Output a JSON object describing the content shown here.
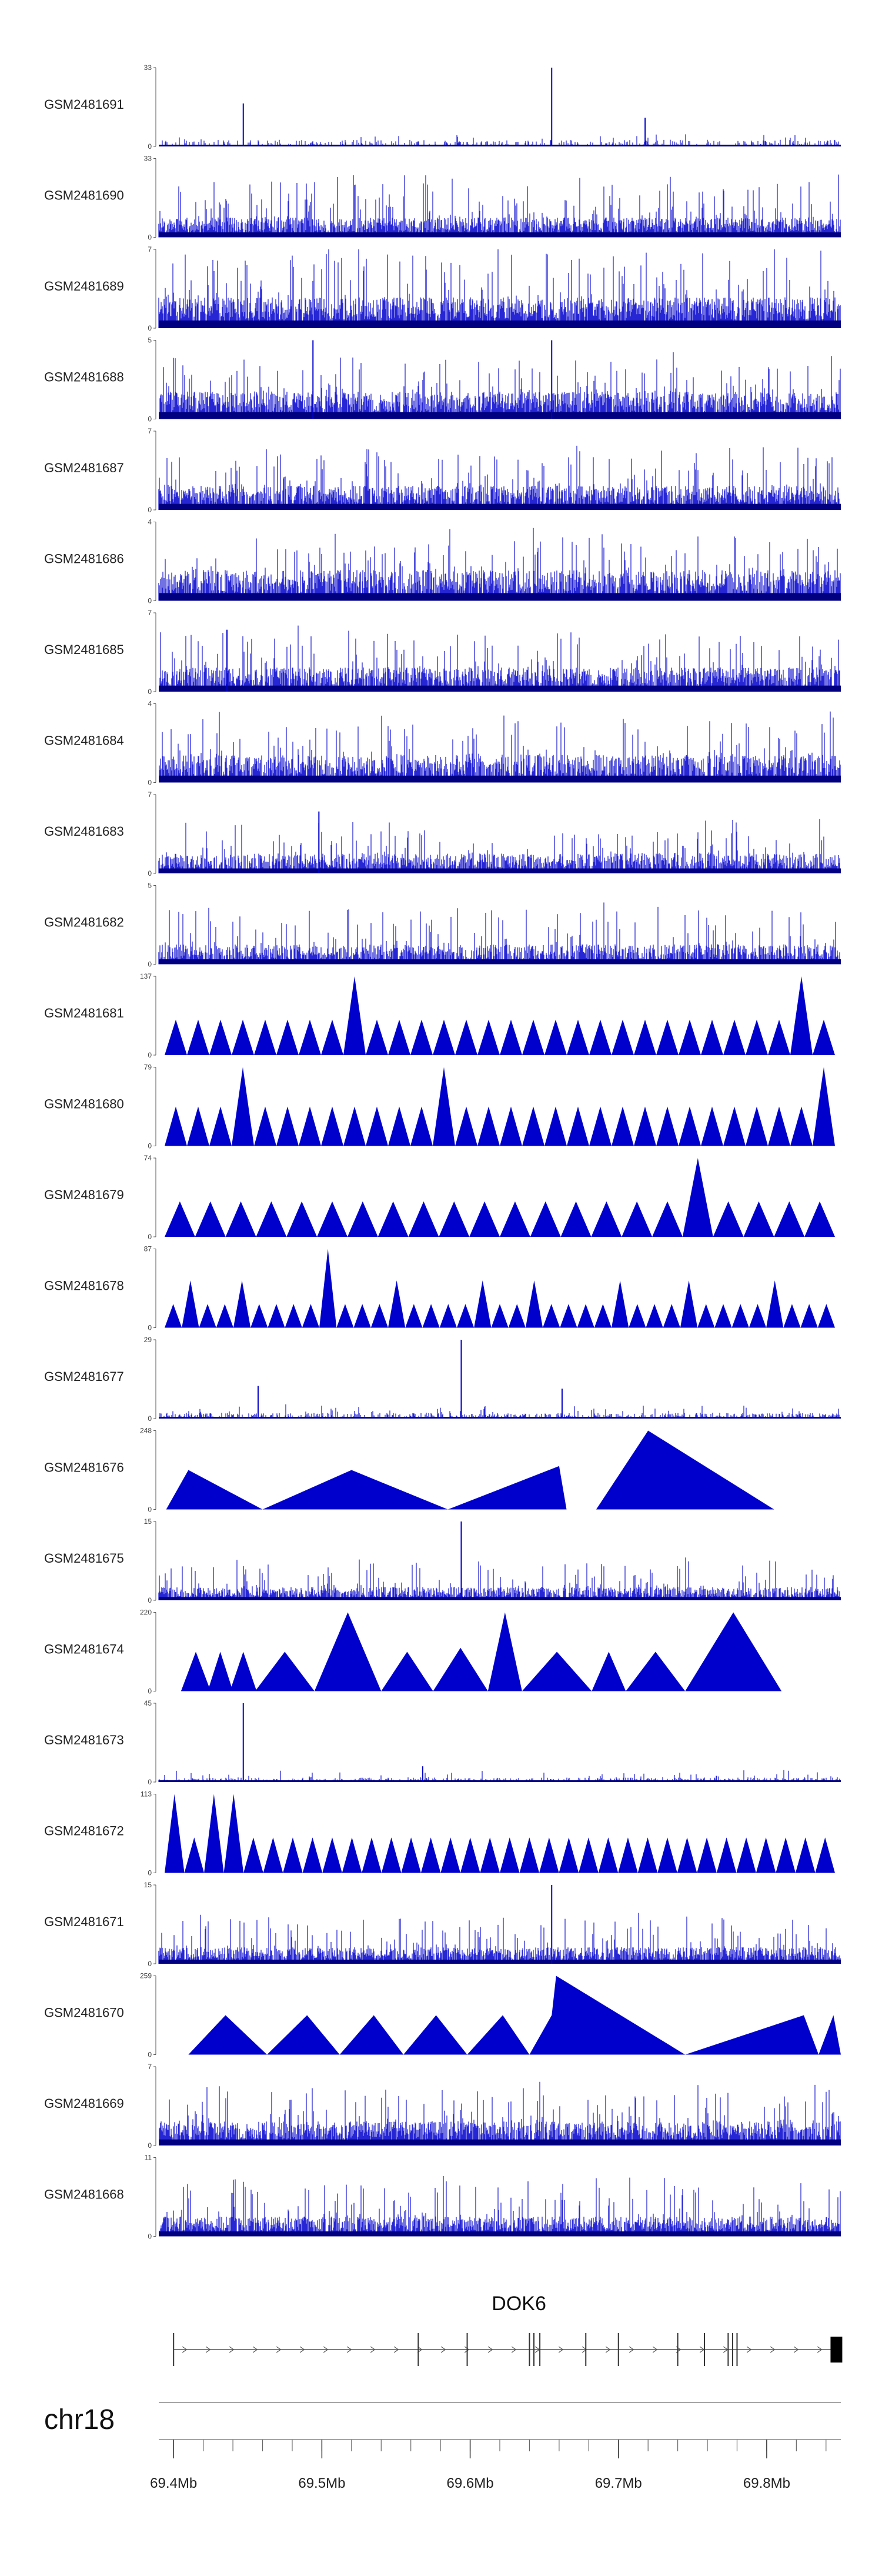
{
  "chart_data": {
    "type": "genome-browser-coverage",
    "region": {
      "chrom": "chr18",
      "start_mb": 69.39,
      "end_mb": 69.85
    },
    "colors": {
      "signal": "#0000cc",
      "axis": "#555555",
      "gene": "#000000"
    },
    "tracks": [
      {
        "label": "GSM2481691",
        "ymax": 33,
        "style": "spiky",
        "density": 0.25,
        "base": 0.06,
        "amp": 0.1,
        "peaks": [
          {
            "mb": 69.447,
            "v": 18
          },
          {
            "mb": 69.655,
            "v": 33
          },
          {
            "mb": 69.718,
            "v": 12
          }
        ]
      },
      {
        "label": "GSM2481690",
        "ymax": 33,
        "style": "spiky",
        "density": 0.85,
        "base": 0.18,
        "amp": 0.62,
        "peaks": []
      },
      {
        "label": "GSM2481689",
        "ymax": 7,
        "style": "spiky",
        "density": 0.85,
        "base": 0.28,
        "amp": 0.7,
        "peaks": []
      },
      {
        "label": "GSM2481688",
        "ymax": 5,
        "style": "spiky",
        "density": 0.8,
        "base": 0.25,
        "amp": 0.55,
        "peaks": [
          {
            "mb": 69.494,
            "v": 5
          },
          {
            "mb": 69.655,
            "v": 5
          }
        ]
      },
      {
        "label": "GSM2481687",
        "ymax": 7,
        "style": "spiky",
        "density": 0.8,
        "base": 0.22,
        "amp": 0.55,
        "peaks": []
      },
      {
        "label": "GSM2481686",
        "ymax": 4,
        "style": "spiky",
        "density": 0.75,
        "base": 0.28,
        "amp": 0.55,
        "peaks": []
      },
      {
        "label": "GSM2481685",
        "ymax": 7,
        "style": "spiky",
        "density": 0.75,
        "base": 0.22,
        "amp": 0.55,
        "peaks": [
          {
            "mb": 69.436,
            "v": 5.5
          }
        ]
      },
      {
        "label": "GSM2481684",
        "ymax": 4,
        "style": "spiky",
        "density": 0.75,
        "base": 0.25,
        "amp": 0.6,
        "peaks": []
      },
      {
        "label": "GSM2481683",
        "ymax": 7,
        "style": "spiky",
        "density": 0.7,
        "base": 0.18,
        "amp": 0.45,
        "peaks": [
          {
            "mb": 69.498,
            "v": 5.5
          }
        ]
      },
      {
        "label": "GSM2481682",
        "ymax": 5,
        "style": "spiky",
        "density": 0.7,
        "base": 0.18,
        "amp": 0.55,
        "peaks": []
      },
      {
        "label": "GSM2481681",
        "ymax": 137,
        "style": "triangles",
        "heights": [
          0.45,
          0.45,
          0.45,
          0.45,
          0.45,
          0.45,
          0.45,
          0.45,
          1.0,
          0.45,
          0.45,
          0.45,
          0.45,
          0.45,
          0.45,
          0.45,
          0.45,
          0.45,
          0.45,
          0.45,
          0.45,
          0.45,
          0.45,
          0.45,
          0.45,
          0.45,
          0.45,
          0.45,
          1.0,
          0.45
        ]
      },
      {
        "label": "GSM2481680",
        "ymax": 79,
        "style": "triangles",
        "heights": [
          0.5,
          0.5,
          0.5,
          1.0,
          0.5,
          0.5,
          0.5,
          0.5,
          0.5,
          0.5,
          0.5,
          0.5,
          1.0,
          0.5,
          0.5,
          0.5,
          0.5,
          0.5,
          0.5,
          0.5,
          0.5,
          0.5,
          0.5,
          0.5,
          0.5,
          0.5,
          0.5,
          0.5,
          0.5,
          1.0
        ]
      },
      {
        "label": "GSM2481679",
        "ymax": 74,
        "style": "triangles",
        "heights": [
          0.45,
          0.45,
          0.45,
          0.45,
          0.45,
          0.45,
          0.45,
          0.45,
          0.45,
          0.45,
          0.45,
          0.45,
          0.45,
          0.45,
          0.45,
          0.45,
          0.45,
          1.0,
          0.45,
          0.45,
          0.45,
          0.45
        ]
      },
      {
        "label": "GSM2481678",
        "ymax": 87,
        "style": "triangles",
        "heights": [
          0.3,
          0.6,
          0.3,
          0.3,
          0.6,
          0.3,
          0.3,
          0.3,
          0.3,
          1.0,
          0.3,
          0.3,
          0.3,
          0.6,
          0.3,
          0.3,
          0.3,
          0.3,
          0.6,
          0.3,
          0.3,
          0.6,
          0.3,
          0.3,
          0.3,
          0.3,
          0.6,
          0.3,
          0.3,
          0.3,
          0.6,
          0.3,
          0.3,
          0.3,
          0.3,
          0.6,
          0.3,
          0.3,
          0.3
        ]
      },
      {
        "label": "GSM2481677",
        "ymax": 29,
        "style": "spiky",
        "density": 0.35,
        "base": 0.05,
        "amp": 0.12,
        "peaks": [
          {
            "mb": 69.457,
            "v": 12
          },
          {
            "mb": 69.594,
            "v": 29
          },
          {
            "mb": 69.662,
            "v": 11
          }
        ]
      },
      {
        "label": "GSM2481676",
        "ymax": 248,
        "style": "polygon",
        "points": [
          [
            69.395,
            0
          ],
          [
            69.41,
            0.5
          ],
          [
            69.46,
            0
          ],
          [
            69.52,
            0.5
          ],
          [
            69.585,
            0
          ],
          [
            69.66,
            0.55
          ],
          [
            69.665,
            0
          ],
          [
            69.685,
            0
          ],
          [
            69.72,
            1.0
          ],
          [
            69.805,
            0
          ]
        ]
      },
      {
        "label": "GSM2481675",
        "ymax": 15,
        "style": "spiky",
        "density": 0.75,
        "base": 0.12,
        "amp": 0.4,
        "peaks": [
          {
            "mb": 69.594,
            "v": 15
          }
        ]
      },
      {
        "label": "GSM2481674",
        "ymax": 220,
        "style": "triangles-custom",
        "tris": [
          [
            69.405,
            69.425,
            0.5
          ],
          [
            69.423,
            69.44,
            0.5
          ],
          [
            69.438,
            69.456,
            0.5
          ],
          [
            69.455,
            69.495,
            0.5
          ],
          [
            69.495,
            69.54,
            1.0
          ],
          [
            69.54,
            69.575,
            0.5
          ],
          [
            69.575,
            69.612,
            0.55
          ],
          [
            69.612,
            69.635,
            1.0
          ],
          [
            69.635,
            69.682,
            0.5
          ],
          [
            69.682,
            69.705,
            0.5
          ],
          [
            69.705,
            69.745,
            0.5
          ],
          [
            69.745,
            69.81,
            1.0
          ]
        ]
      },
      {
        "label": "GSM2481673",
        "ymax": 45,
        "style": "spiky",
        "density": 0.35,
        "base": 0.04,
        "amp": 0.1,
        "peaks": [
          {
            "mb": 69.447,
            "v": 45
          },
          {
            "mb": 69.568,
            "v": 9
          }
        ]
      },
      {
        "label": "GSM2481672",
        "ymax": 113,
        "style": "triangles",
        "heights": [
          1.0,
          0.45,
          1.0,
          1.0,
          0.45,
          0.45,
          0.45,
          0.45,
          0.45,
          0.45,
          0.45,
          0.45,
          0.45,
          0.45,
          0.45,
          0.45,
          0.45,
          0.45,
          0.45,
          0.45,
          0.45,
          0.45,
          0.45,
          0.45,
          0.45,
          0.45,
          0.45,
          0.45,
          0.45,
          0.45,
          0.45,
          0.45,
          0.45,
          0.45
        ]
      },
      {
        "label": "GSM2481671",
        "ymax": 15,
        "style": "spiky",
        "density": 0.8,
        "base": 0.15,
        "amp": 0.45,
        "peaks": [
          {
            "mb": 69.655,
            "v": 15
          }
        ]
      },
      {
        "label": "GSM2481670",
        "ymax": 259,
        "style": "polygon",
        "points": [
          [
            69.41,
            0
          ],
          [
            69.435,
            0.5
          ],
          [
            69.463,
            0
          ],
          [
            69.49,
            0.5
          ],
          [
            69.512,
            0
          ],
          [
            69.535,
            0.5
          ],
          [
            69.555,
            0
          ],
          [
            69.577,
            0.5
          ],
          [
            69.598,
            0
          ],
          [
            69.622,
            0.5
          ],
          [
            69.64,
            0
          ],
          [
            69.655,
            0.5
          ],
          [
            69.658,
            1.0
          ],
          [
            69.745,
            0
          ],
          [
            69.825,
            0.5
          ],
          [
            69.835,
            0
          ],
          [
            69.845,
            0.5
          ],
          [
            69.85,
            0
          ]
        ]
      },
      {
        "label": "GSM2481669",
        "ymax": 7,
        "style": "spiky",
        "density": 0.8,
        "base": 0.22,
        "amp": 0.55,
        "peaks": []
      },
      {
        "label": "GSM2481668",
        "ymax": 11,
        "style": "spiky",
        "density": 0.8,
        "base": 0.18,
        "amp": 0.55,
        "peaks": []
      }
    ],
    "gene": {
      "name": "DOK6",
      "strand": "+",
      "start_mb": 69.4,
      "end_mb": 69.85,
      "exons_mb": [
        69.4,
        69.565,
        69.598,
        69.64,
        69.643,
        69.647,
        69.678,
        69.7,
        69.74,
        69.758,
        69.774,
        69.777,
        69.78,
        69.847
      ]
    },
    "axis": {
      "chromosome": "chr18",
      "ticks_mb": [
        69.4,
        69.5,
        69.6,
        69.7,
        69.8
      ],
      "tick_labels": [
        "69.4Mb",
        "69.5Mb",
        "69.6Mb",
        "69.7Mb",
        "69.8Mb"
      ],
      "minor_step_mb": 0.02
    }
  }
}
